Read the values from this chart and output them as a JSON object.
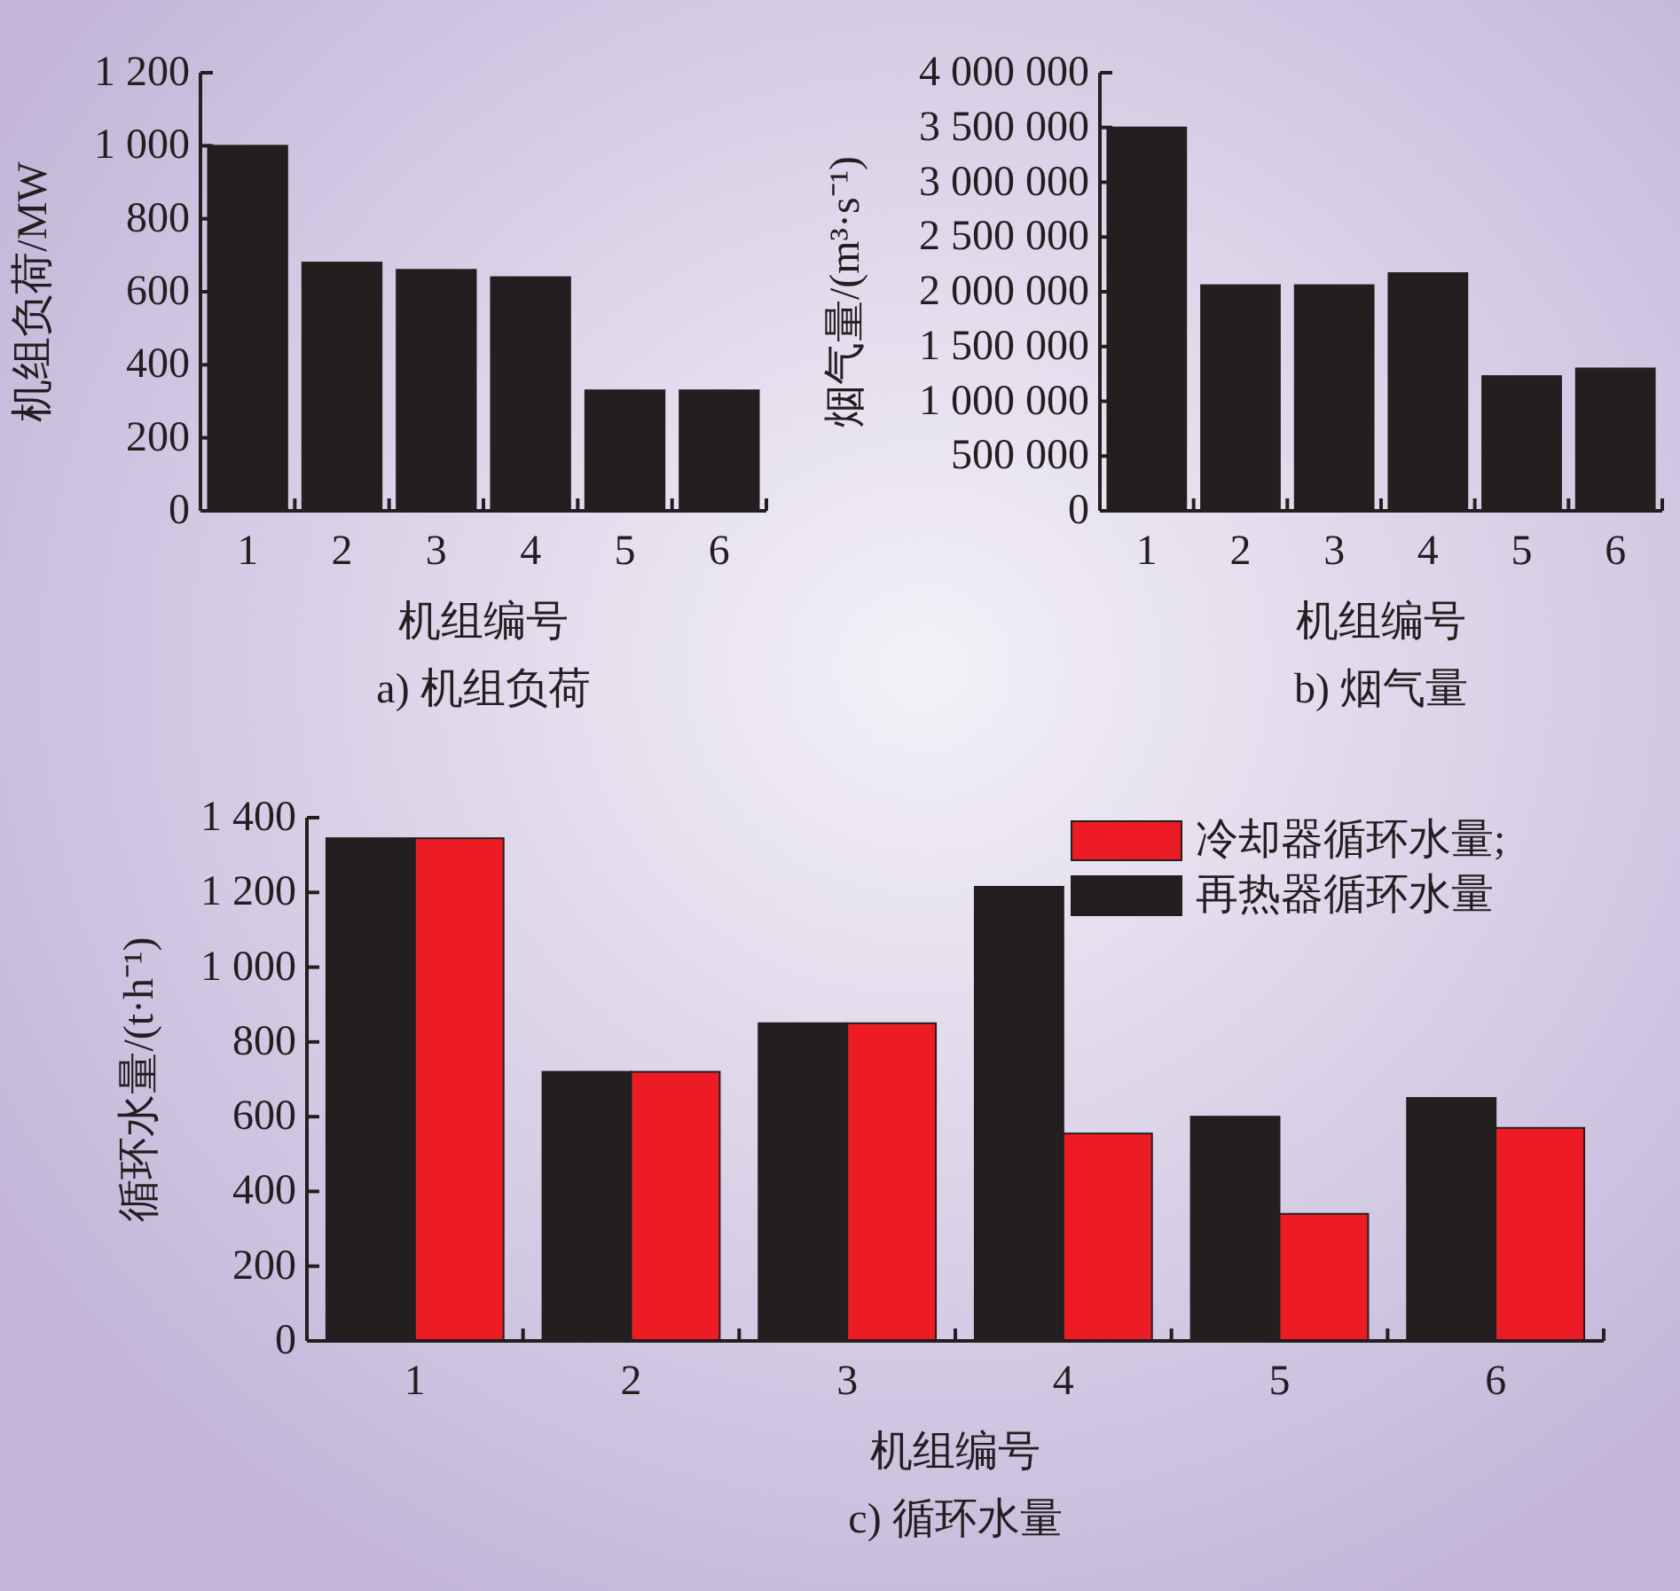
{
  "chart_data": [
    {
      "type": "bar",
      "title": "a) 机组负荷",
      "xlabel": "机组编号",
      "ylabel": "机组负荷/MW",
      "categories": [
        "1",
        "2",
        "3",
        "4",
        "5",
        "6"
      ],
      "values": [
        1000,
        680,
        660,
        640,
        330,
        330
      ],
      "color": "#231f20",
      "ylim": [
        0,
        1200
      ],
      "yticks": [
        0,
        200,
        400,
        600,
        800,
        {
          "value": 1000,
          "label": "1 000"
        },
        {
          "value": 1200,
          "label": "1 200"
        }
      ]
    },
    {
      "type": "bar",
      "title": "b) 烟气量",
      "xlabel": "机组编号",
      "ylabel": "烟气量/(m³·s⁻¹)",
      "categories": [
        "1",
        "2",
        "3",
        "4",
        "5",
        "6"
      ],
      "values": [
        3500000,
        2060000,
        2060000,
        2170000,
        1230000,
        1300000
      ],
      "color": "#231f20",
      "ylim": [
        0,
        4000000
      ],
      "yticks": [
        0,
        {
          "value": 500000,
          "label": "500 000"
        },
        {
          "value": 1000000,
          "label": "1 000 000"
        },
        {
          "value": 1500000,
          "label": "1 500 000"
        },
        {
          "value": 2000000,
          "label": "2 000 000"
        },
        {
          "value": 2500000,
          "label": "2 500 000"
        },
        {
          "value": 3000000,
          "label": "3 000 000"
        },
        {
          "value": 3500000,
          "label": "3 500 000"
        },
        {
          "value": 4000000,
          "label": "4 000 000"
        }
      ]
    },
    {
      "type": "bar",
      "title": "c) 循环水量",
      "xlabel": "机组编号",
      "ylabel": "循环水量/(t·h⁻¹)",
      "categories": [
        "1",
        "2",
        "3",
        "4",
        "5",
        "6"
      ],
      "legend": "top right",
      "ylim": [
        0,
        1400
      ],
      "yticks": [
        0,
        200,
        400,
        600,
        800,
        {
          "value": 1000,
          "label": "1 000"
        },
        {
          "value": 1200,
          "label": "1 200"
        },
        {
          "value": 1400,
          "label": "1 400"
        }
      ],
      "series": [
        {
          "name": "再热器循环水量",
          "color": "#231f20",
          "values": [
            1345,
            720,
            850,
            1215,
            600,
            650
          ]
        },
        {
          "name": "冷却器循环水量;",
          "color": "#ed1c24",
          "values": [
            1345,
            720,
            850,
            555,
            340,
            570
          ]
        }
      ]
    }
  ]
}
